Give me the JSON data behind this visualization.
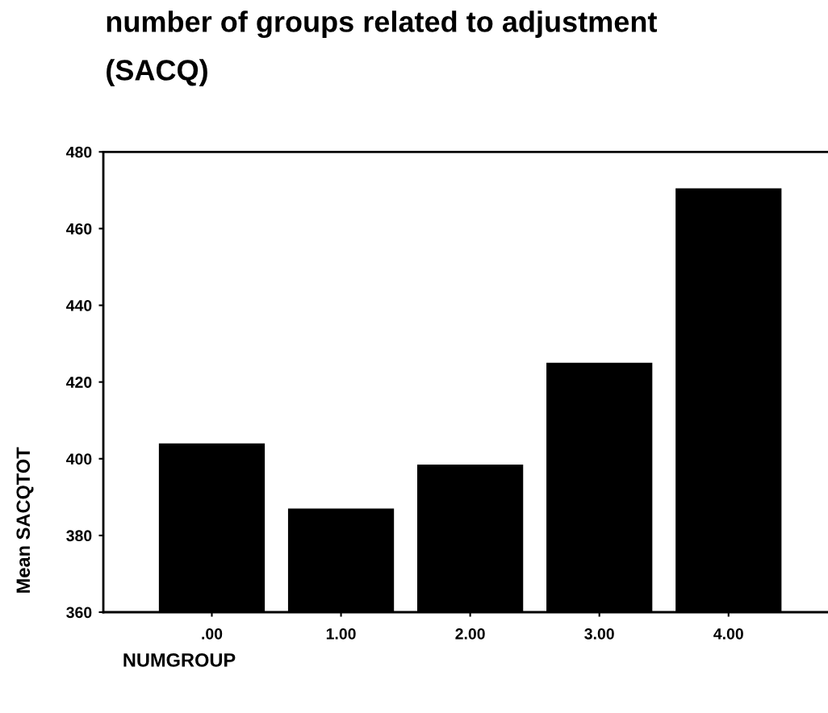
{
  "chart_data": {
    "type": "bar",
    "title": "number of groups related to adjustment\n(SACQ)",
    "xlabel": "NUMGROUP",
    "ylabel": "Mean SACQTOT",
    "categories": [
      ".00",
      "1.00",
      "2.00",
      "3.00",
      "4.00"
    ],
    "values": [
      404,
      387,
      398.5,
      425,
      470.5
    ],
    "color": "#000000",
    "ylim": [
      360,
      480
    ],
    "yticks": [
      360,
      380,
      400,
      420,
      440,
      460,
      480
    ],
    "grid": false
  }
}
